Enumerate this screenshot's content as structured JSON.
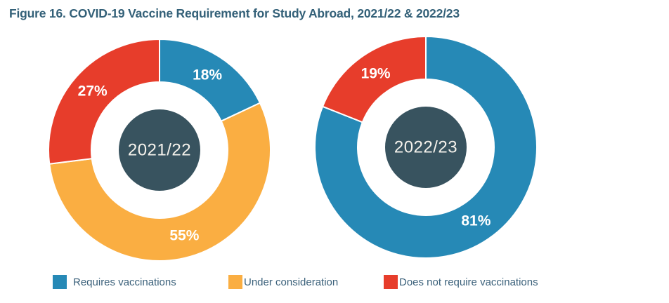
{
  "title": "Figure 16. COVID-19 Vaccine Requirement for Study Abroad, 2021/22 & 2022/23",
  "colors": {
    "blue": "#2689B6",
    "orange": "#FAAE42",
    "red": "#E73D2B",
    "center_circle": "#38535F",
    "title_text": "#336078",
    "legend_text": "#3A607A",
    "slice_label_text": "#FFFFFF"
  },
  "legend": [
    {
      "label": "Requires vaccinations",
      "color": "#2689B6"
    },
    {
      "label": "Under consideration",
      "color": "#FAAE42"
    },
    {
      "label": "Does not require vaccinations",
      "color": "#E73D2B"
    }
  ],
  "chart_data": [
    {
      "type": "pie",
      "subtype": "donut",
      "title": "2021/22",
      "center_label": "2021/22",
      "categories": [
        "Requires vaccinations",
        "Under consideration",
        "Does not require vaccinations"
      ],
      "values": [
        18,
        55,
        27
      ],
      "labels": [
        "18%",
        "55%",
        "27%"
      ],
      "slice_colors": [
        "#2689B6",
        "#FAAE42",
        "#E73D2B"
      ],
      "start_angle_deg": 0,
      "direction": "clockwise",
      "legend_position": "bottom"
    },
    {
      "type": "pie",
      "subtype": "donut",
      "title": "2022/23",
      "center_label": "2022/23",
      "categories": [
        "Requires vaccinations",
        "Does not require vaccinations"
      ],
      "values": [
        81,
        19
      ],
      "labels": [
        "81%",
        "19%"
      ],
      "slice_colors": [
        "#2689B6",
        "#E73D2B"
      ],
      "start_angle_deg": 0,
      "direction": "clockwise",
      "legend_position": "bottom"
    }
  ]
}
